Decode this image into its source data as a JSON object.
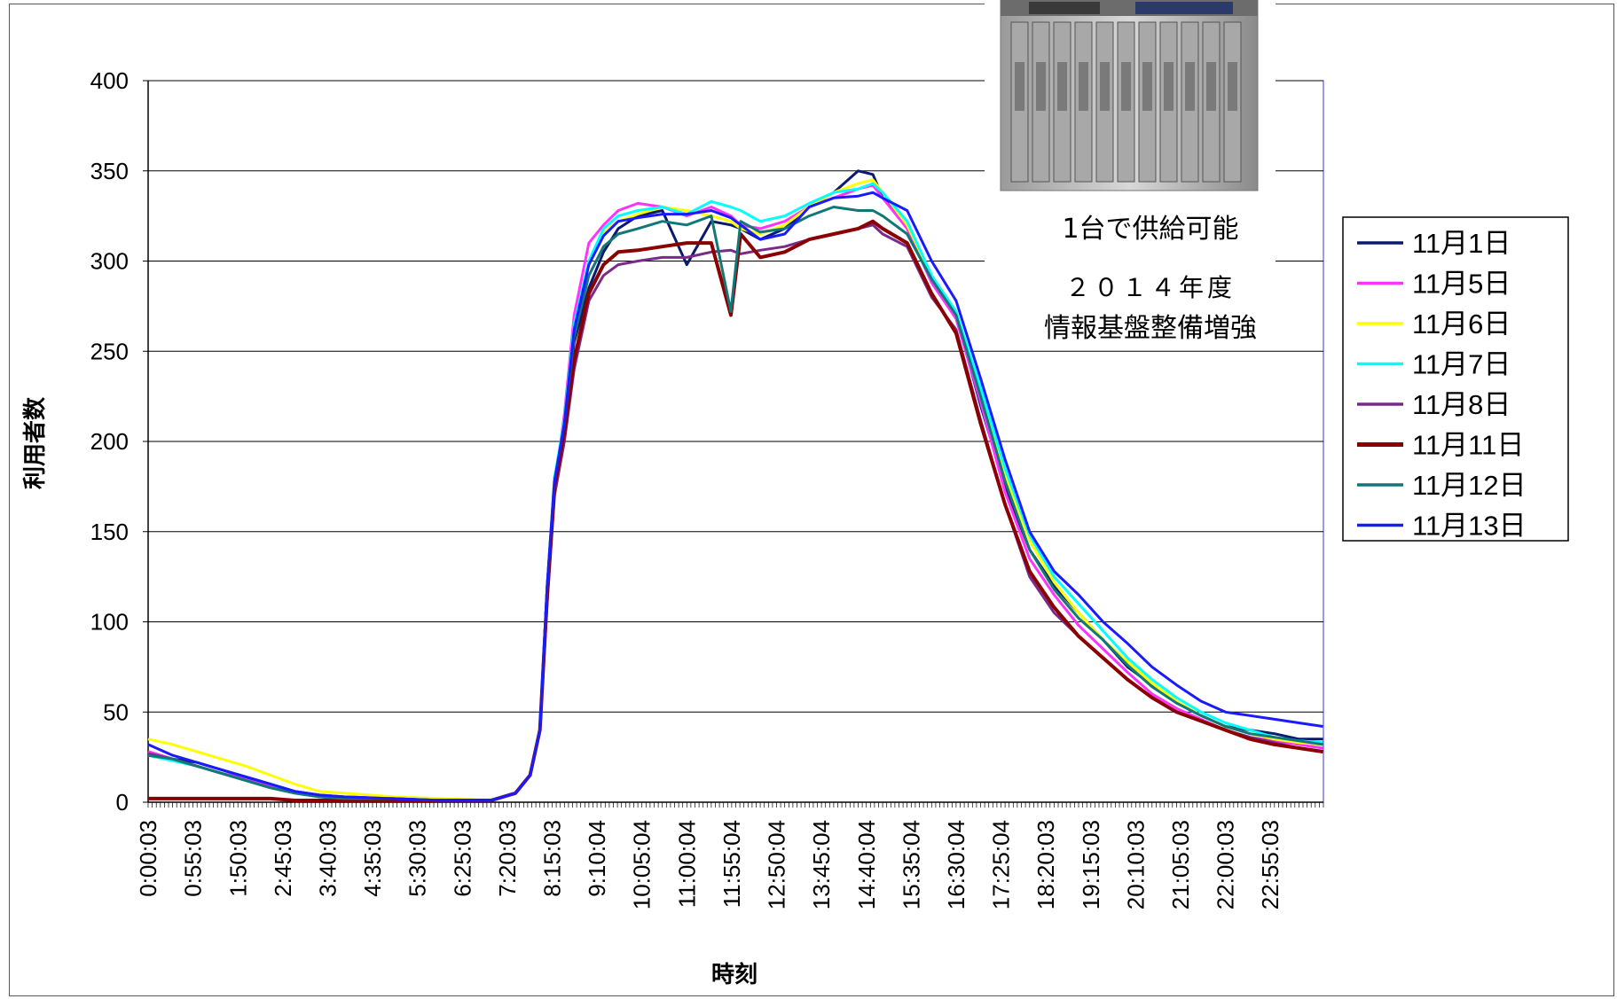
{
  "chart_data": {
    "type": "line",
    "xlabel": "時刻",
    "ylabel": "利用者数",
    "ylim": [
      0,
      400
    ],
    "yticks": [
      0,
      50,
      100,
      150,
      200,
      250,
      300,
      350,
      400
    ],
    "xlim": [
      0,
      24
    ],
    "x_tick_labels": [
      "0:00:03",
      "0:55:03",
      "1:50:03",
      "2:45:03",
      "3:40:03",
      "4:35:03",
      "5:30:03",
      "6:25:03",
      "7:20:03",
      "8:15:03",
      "9:10:04",
      "10:05:04",
      "11:00:04",
      "11:55:04",
      "12:50:04",
      "13:45:04",
      "14:40:04",
      "15:35:04",
      "16:30:04",
      "17:25:04",
      "18:20:03",
      "19:15:03",
      "20:10:03",
      "21:05:03",
      "22:00:03",
      "22:55:03"
    ],
    "grid": "horizontal",
    "legend_position": "right",
    "x_hours": [
      0,
      0.5,
      1,
      1.5,
      2,
      2.5,
      3,
      3.5,
      4,
      5,
      6,
      7,
      7.5,
      7.8,
      8.0,
      8.15,
      8.3,
      8.5,
      8.7,
      9.0,
      9.3,
      9.6,
      10.0,
      10.5,
      11.0,
      11.5,
      11.9,
      12.1,
      12.5,
      13.0,
      13.5,
      14.0,
      14.5,
      14.8,
      15.0,
      15.5,
      16.0,
      16.5,
      17.0,
      17.5,
      18.0,
      18.5,
      19.0,
      19.5,
      20.0,
      20.5,
      21.0,
      21.5,
      22.0,
      22.5,
      23.0,
      23.5,
      23.99
    ],
    "series": [
      {
        "name": "11月1日",
        "color": "#0b1a6e",
        "values": [
          28,
          24,
          22,
          18,
          14,
          10,
          6,
          4,
          3,
          2,
          1,
          1,
          5,
          15,
          40,
          120,
          180,
          205,
          255,
          285,
          305,
          318,
          325,
          328,
          298,
          322,
          320,
          318,
          312,
          318,
          330,
          338,
          350,
          348,
          335,
          322,
          290,
          270,
          220,
          175,
          140,
          120,
          105,
          90,
          75,
          65,
          55,
          48,
          42,
          40,
          38,
          35,
          35
        ]
      },
      {
        "name": "11月5日",
        "color": "#ff33ff",
        "values": [
          28,
          24,
          20,
          16,
          13,
          9,
          6,
          4,
          3,
          2,
          1,
          1,
          5,
          15,
          40,
          120,
          175,
          215,
          270,
          310,
          320,
          328,
          332,
          330,
          325,
          330,
          325,
          320,
          318,
          322,
          330,
          335,
          340,
          342,
          335,
          318,
          288,
          268,
          222,
          172,
          135,
          115,
          98,
          85,
          72,
          60,
          52,
          46,
          40,
          36,
          34,
          32,
          30
        ]
      },
      {
        "name": "11月6日",
        "color": "#ffff00",
        "values": [
          35,
          32,
          28,
          24,
          20,
          15,
          10,
          6,
          5,
          3,
          2,
          1,
          5,
          15,
          40,
          120,
          178,
          210,
          262,
          300,
          316,
          322,
          326,
          330,
          328,
          325,
          322,
          318,
          315,
          320,
          330,
          338,
          343,
          345,
          338,
          320,
          292,
          272,
          228,
          182,
          145,
          122,
          105,
          90,
          78,
          66,
          56,
          48,
          42,
          38,
          35,
          33,
          32
        ]
      },
      {
        "name": "11月7日",
        "color": "#00ffff",
        "values": [
          26,
          23,
          20,
          16,
          12,
          8,
          5,
          3,
          2,
          2,
          1,
          1,
          5,
          15,
          40,
          120,
          180,
          212,
          265,
          300,
          318,
          325,
          328,
          330,
          326,
          333,
          330,
          328,
          322,
          325,
          332,
          338,
          340,
          343,
          338,
          322,
          292,
          272,
          230,
          185,
          148,
          125,
          110,
          95,
          80,
          68,
          58,
          50,
          44,
          40,
          36,
          34,
          33
        ]
      },
      {
        "name": "11月8日",
        "color": "#7a2a8a",
        "values": [
          27,
          24,
          20,
          16,
          12,
          8,
          5,
          3,
          2,
          2,
          1,
          1,
          5,
          15,
          40,
          110,
          170,
          200,
          240,
          278,
          292,
          298,
          300,
          302,
          302,
          305,
          306,
          304,
          306,
          308,
          312,
          315,
          318,
          320,
          315,
          308,
          280,
          262,
          212,
          165,
          125,
          105,
          92,
          80,
          68,
          58,
          50,
          45,
          40,
          36,
          33,
          30,
          28
        ]
      },
      {
        "name": "11月11日",
        "color": "#8b0000",
        "values": [
          2,
          2,
          2,
          2,
          2,
          2,
          1,
          1,
          1,
          1,
          1,
          1,
          5,
          15,
          40,
          115,
          175,
          205,
          245,
          282,
          298,
          305,
          306,
          308,
          310,
          310,
          270,
          315,
          302,
          305,
          312,
          315,
          318,
          322,
          318,
          310,
          282,
          260,
          210,
          165,
          128,
          108,
          92,
          80,
          68,
          58,
          50,
          45,
          40,
          35,
          32,
          30,
          28
        ]
      },
      {
        "name": "11月12日",
        "color": "#117777",
        "values": [
          26,
          24,
          20,
          16,
          12,
          8,
          5,
          3,
          2,
          2,
          1,
          1,
          5,
          15,
          40,
          120,
          178,
          210,
          258,
          292,
          308,
          315,
          318,
          322,
          320,
          325,
          272,
          322,
          316,
          318,
          325,
          330,
          328,
          328,
          325,
          315,
          290,
          270,
          225,
          178,
          140,
          118,
          102,
          90,
          76,
          64,
          55,
          48,
          42,
          38,
          36,
          34,
          32
        ]
      },
      {
        "name": "11月13日",
        "color": "#1a1aff",
        "values": [
          32,
          26,
          22,
          18,
          14,
          10,
          6,
          4,
          3,
          2,
          1,
          1,
          5,
          15,
          40,
          120,
          178,
          210,
          262,
          298,
          314,
          322,
          324,
          326,
          326,
          328,
          324,
          320,
          312,
          315,
          330,
          335,
          336,
          338,
          335,
          328,
          300,
          278,
          235,
          190,
          150,
          128,
          115,
          100,
          88,
          75,
          65,
          56,
          50,
          48,
          46,
          44,
          42
        ]
      }
    ]
  },
  "caption": {
    "line1": "1台で供給可能",
    "line2": "２０１４年度",
    "line3": "情報基盤整備増強"
  },
  "server_image_alt": "server-rack-photo"
}
